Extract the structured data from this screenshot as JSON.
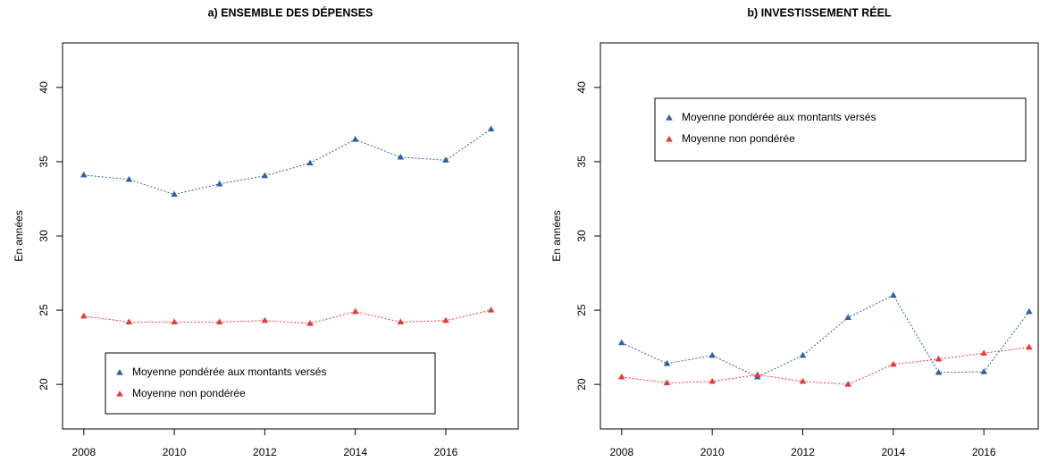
{
  "chart_data": [
    {
      "type": "line",
      "title": "a) ENSEMBLE DES DÉPENSES",
      "ylabel": "En années",
      "x": [
        2008,
        2009,
        2010,
        2011,
        2012,
        2013,
        2014,
        2015,
        2016,
        2017
      ],
      "series": [
        {
          "name": "Moyenne pondérée aux montants versés",
          "color": "#2e5fa8",
          "values": [
            34.1,
            33.8,
            32.8,
            33.5,
            34.05,
            34.9,
            36.5,
            35.3,
            35.1,
            37.2
          ]
        },
        {
          "name": "Moyenne non pondérée",
          "color": "#e8383d",
          "values": [
            24.6,
            24.2,
            24.2,
            24.2,
            24.3,
            24.1,
            24.9,
            24.2,
            24.3,
            25.0
          ]
        }
      ],
      "xlim": [
        2007.53,
        2017.6
      ],
      "ylim": [
        17,
        43
      ],
      "xticks": [
        2008,
        2010,
        2012,
        2014,
        2016
      ],
      "yticks": [
        20,
        25,
        30,
        35,
        40
      ],
      "legend": "bottom"
    },
    {
      "type": "line",
      "title": "b) INVESTISSEMENT RÉEL",
      "ylabel": "En années",
      "x": [
        2008,
        2009,
        2010,
        2011,
        2012,
        2013,
        2014,
        2015,
        2016,
        2017
      ],
      "series": [
        {
          "name": "Moyenne pondérée aux montants versés",
          "color": "#2e5fa8",
          "values": [
            22.8,
            21.4,
            21.95,
            20.5,
            21.95,
            24.5,
            26.0,
            20.8,
            20.85,
            24.9
          ]
        },
        {
          "name": "Moyenne non pondérée",
          "color": "#e8383d",
          "values": [
            20.5,
            20.1,
            20.2,
            20.65,
            20.2,
            20.0,
            21.35,
            21.7,
            22.1,
            22.5
          ]
        }
      ],
      "xlim": [
        2007.53,
        2017.2
      ],
      "ylim": [
        17,
        43
      ],
      "xticks": [
        2008,
        2010,
        2012,
        2014,
        2016
      ],
      "yticks": [
        20,
        25,
        30,
        35,
        40
      ],
      "legend": "top"
    }
  ]
}
